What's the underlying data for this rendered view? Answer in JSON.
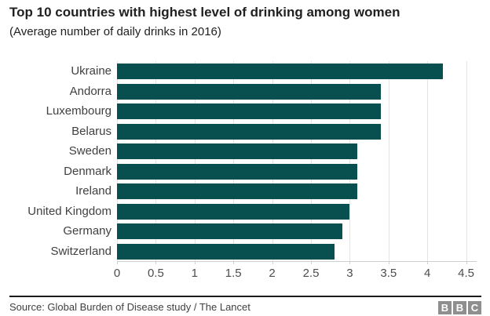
{
  "header": {
    "title": "Top 10 countries with highest level of drinking among women",
    "subtitle": "(Average number of daily drinks in 2016)"
  },
  "chart_data": {
    "type": "bar",
    "orientation": "horizontal",
    "title": "Top 10 countries with highest level of drinking among women",
    "subtitle": "(Average number of daily drinks in 2016)",
    "categories": [
      "Ukraine",
      "Andorra",
      "Luxembourg",
      "Belarus",
      "Sweden",
      "Denmark",
      "Ireland",
      "United Kingdom",
      "Germany",
      "Switzerland"
    ],
    "values": [
      4.2,
      3.4,
      3.4,
      3.4,
      3.1,
      3.1,
      3.1,
      3.0,
      2.9,
      2.8
    ],
    "xlabel": "",
    "ylabel": "",
    "xlim": [
      0,
      4.5
    ],
    "xticks": [
      0,
      0.5,
      1,
      1.5,
      2,
      2.5,
      3,
      3.5,
      4,
      4.5
    ],
    "xtick_labels": [
      "0",
      "0.5",
      "1",
      "1.5",
      "2",
      "2.5",
      "3",
      "3.5",
      "4",
      "4.5"
    ],
    "grid": true,
    "legend": false,
    "bar_color": "#07504f"
  },
  "footer": {
    "source": "Source: Global Burden of Disease study / The Lancet",
    "logo_letters": [
      "B",
      "B",
      "C"
    ]
  },
  "colors": {
    "bar": "#07504f",
    "gridline": "#e4e4e4",
    "axis_line": "#cfcfcf",
    "title_text": "#212121",
    "label_text": "#404040",
    "tick_text": "#4d4d4d",
    "logo_background": "#8f8f8f",
    "logo_letter": "#ffffff"
  }
}
